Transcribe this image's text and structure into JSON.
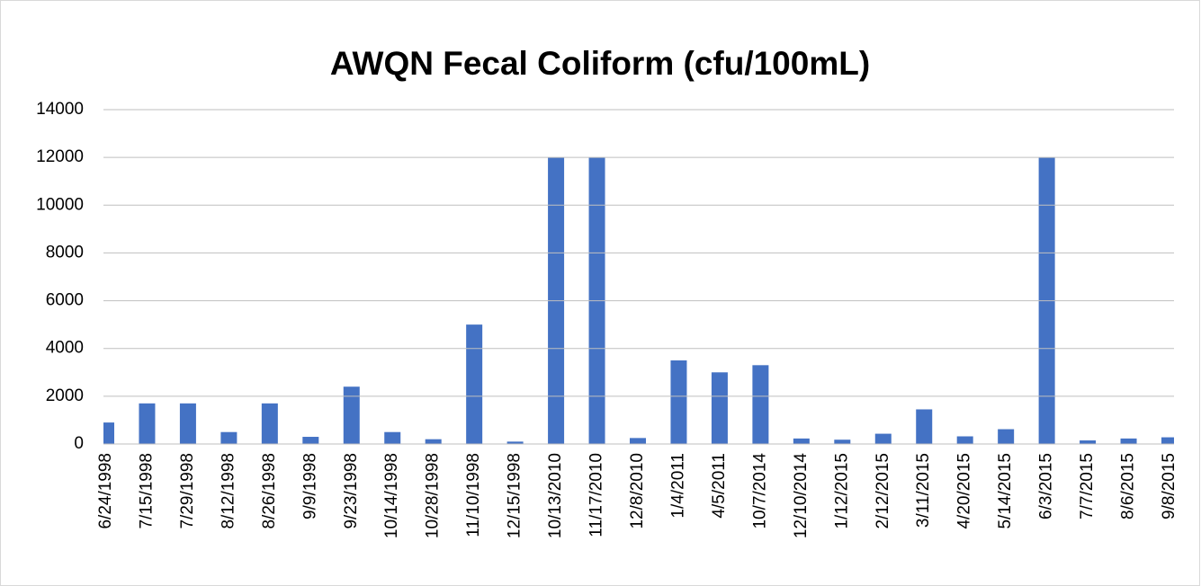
{
  "chart_data": {
    "type": "bar",
    "title": "AWQN Fecal Coliform (cfu/100mL)",
    "categories": [
      "6/24/1998",
      "7/15/1998",
      "7/29/1998",
      "8/12/1998",
      "8/26/1998",
      "9/9/1998",
      "9/23/1998",
      "10/14/1998",
      "10/28/1998",
      "11/10/1998",
      "12/15/1998",
      "10/13/2010",
      "11/17/2010",
      "12/8/2010",
      "1/4/2011",
      "4/5/2011",
      "10/7/2014",
      "12/10/2014",
      "1/12/2015",
      "2/12/2015",
      "3/11/2015",
      "4/20/2015",
      "5/14/2015",
      "6/3/2015",
      "7/7/2015",
      "8/6/2015",
      "9/8/2015"
    ],
    "values": [
      900,
      1700,
      1700,
      500,
      1700,
      300,
      2400,
      500,
      200,
      5000,
      100,
      12000,
      12000,
      250,
      3500,
      3000,
      3300,
      230,
      180,
      430,
      1450,
      320,
      620,
      12000,
      150,
      230,
      280
    ],
    "color": "#4472c4",
    "ylim": [
      0,
      14000
    ],
    "yticks": [
      0,
      2000,
      4000,
      6000,
      8000,
      10000,
      12000,
      14000
    ],
    "grid": true
  }
}
